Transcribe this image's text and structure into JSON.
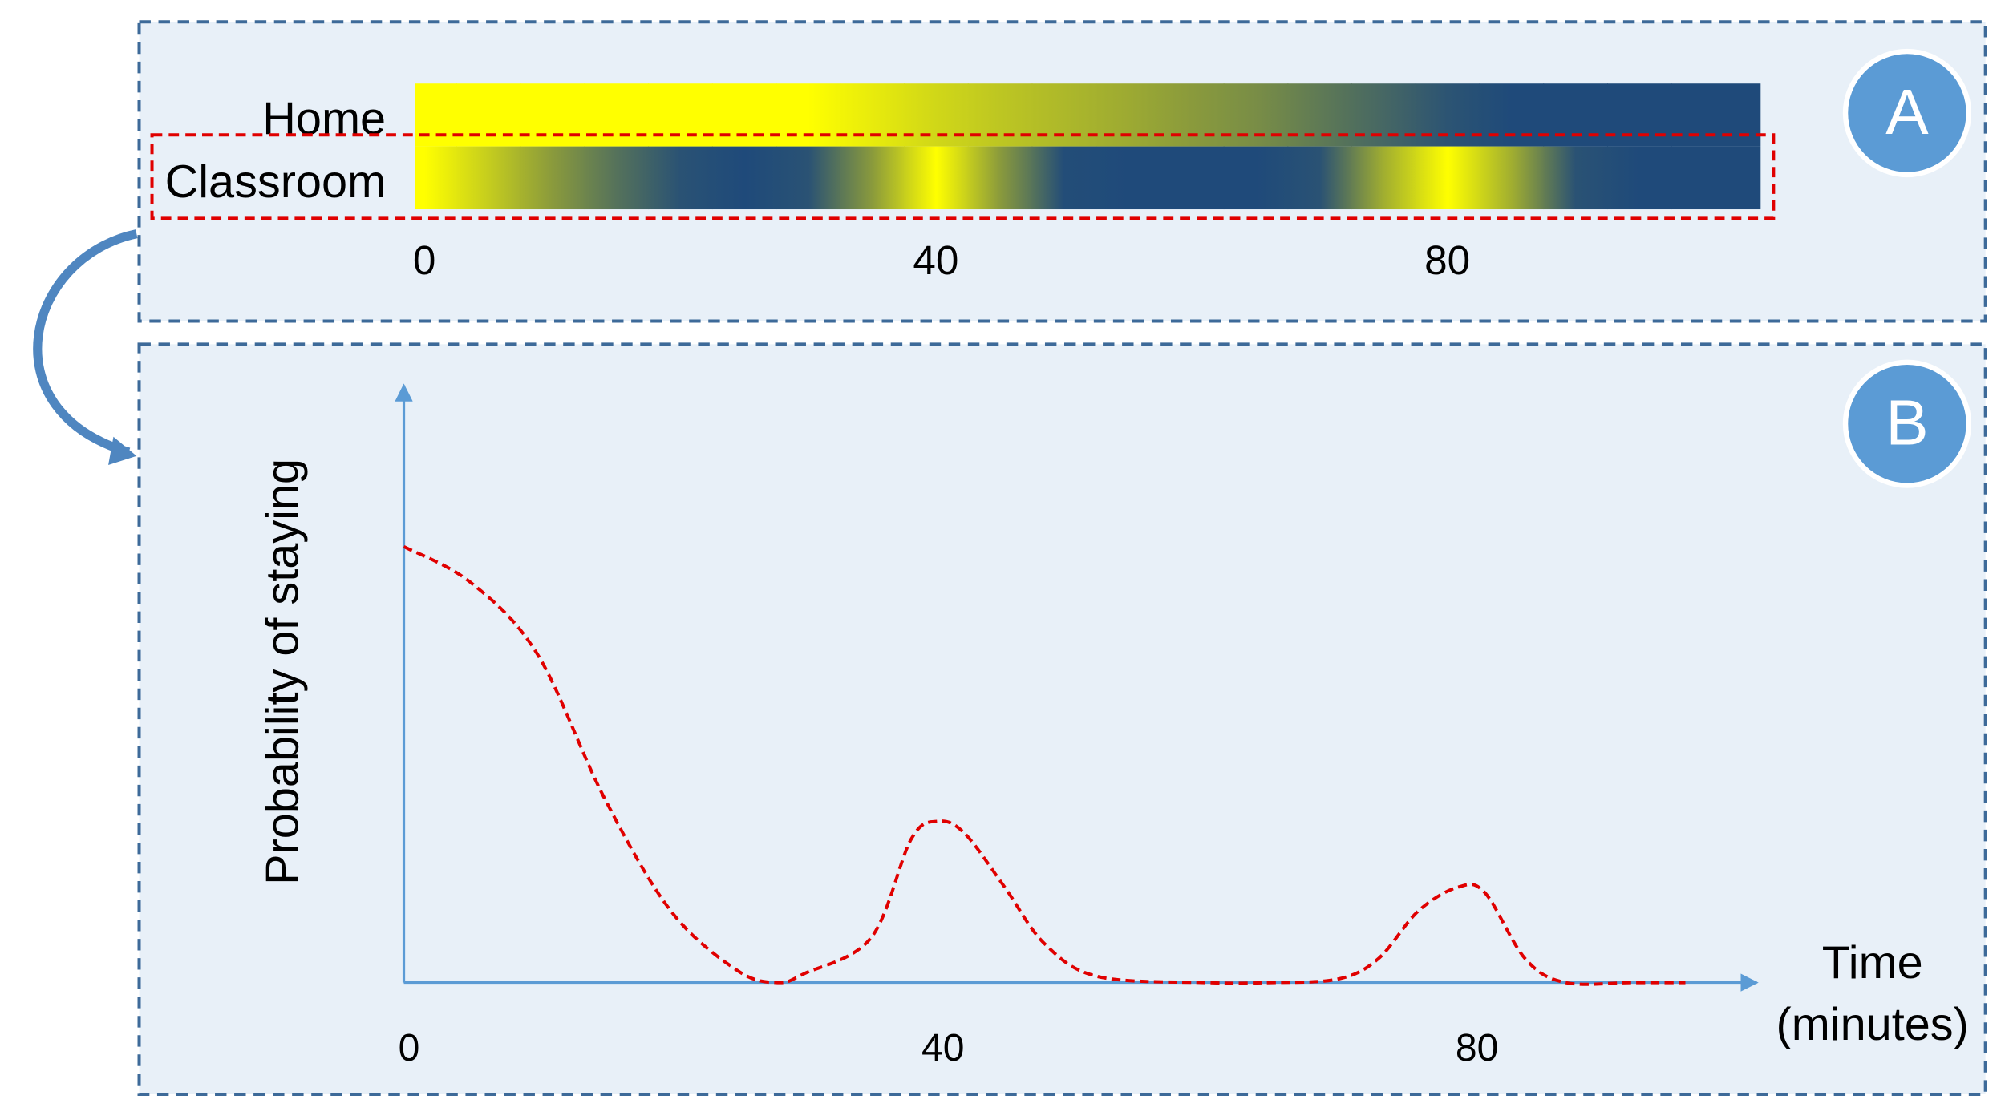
{
  "chart_data": [
    {
      "type": "heatmap",
      "panel": "A",
      "x": [
        0,
        5,
        10,
        15,
        20,
        25,
        30,
        35,
        40,
        45,
        50,
        55,
        60,
        65,
        70,
        75,
        80,
        85,
        90,
        95,
        100
      ],
      "series": [
        {
          "name": "Home",
          "values": [
            1,
            1,
            1,
            1,
            1,
            1,
            1,
            0.9,
            0.8,
            0.72,
            0.65,
            0.58,
            0.5,
            0.42,
            0.3,
            0.18,
            0.06,
            0,
            0,
            0,
            0
          ]
        },
        {
          "name": "Classroom",
          "values": [
            1,
            0.75,
            0.5,
            0.25,
            0.05,
            0,
            0.05,
            0.5,
            1,
            0.5,
            0.02,
            0,
            0,
            0,
            0.05,
            0.6,
            1,
            0.6,
            0.05,
            0,
            0
          ]
        }
      ],
      "colormap": [
        "#1f4a7a",
        "#8a9a3c",
        "#ffff00"
      ],
      "xlim": [
        -0.7,
        104.5
      ],
      "xticks": [
        0,
        40,
        80
      ]
    },
    {
      "type": "line",
      "panel": "B",
      "ylabel": "Probability of staying",
      "xlabel": [
        "Time",
        "(minutes)"
      ],
      "x": [
        0,
        5,
        10,
        15,
        20,
        25,
        28,
        30,
        35,
        38,
        40,
        42,
        45,
        48,
        52,
        60,
        65,
        70,
        73,
        76,
        79,
        81,
        84,
        87,
        92,
        96
      ],
      "values": [
        0.73,
        0.67,
        0.55,
        0.31,
        0.12,
        0.02,
        0,
        0.015,
        0.075,
        0.24,
        0.27,
        0.25,
        0.16,
        0.065,
        0.01,
        0,
        0,
        0.006,
        0.04,
        0.12,
        0.16,
        0.15,
        0.04,
        0,
        0,
        0
      ],
      "color": "#e00000",
      "xlim": [
        0,
        100
      ],
      "ylim": [
        0,
        1
      ],
      "xticks": [
        0,
        40,
        80
      ]
    }
  ]
}
